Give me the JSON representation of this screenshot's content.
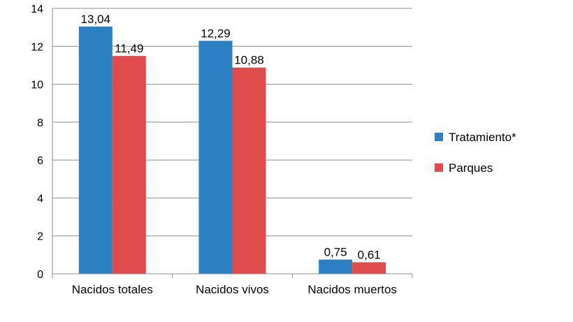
{
  "chart_data": {
    "type": "bar",
    "categories": [
      "Nacidos totales",
      "Nacidos vivos",
      "Nacidos muertos"
    ],
    "series": [
      {
        "name": "Tratamiento*",
        "color": "#2b7fc3",
        "values": [
          13.04,
          12.29,
          0.75
        ],
        "labels": [
          "13,04",
          "12,29",
          "0,75"
        ]
      },
      {
        "name": "Parques",
        "color": "#e04c4c",
        "values": [
          11.49,
          10.88,
          0.61
        ],
        "labels": [
          "11,49",
          "10,88",
          "0,61"
        ]
      }
    ],
    "ylim": [
      0,
      14
    ],
    "yticks": [
      0,
      2,
      4,
      6,
      8,
      10,
      12,
      14
    ],
    "grid": true,
    "legend_position": "right",
    "title": "",
    "xlabel": "",
    "ylabel": ""
  }
}
